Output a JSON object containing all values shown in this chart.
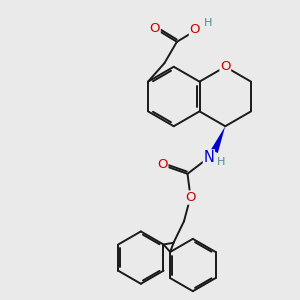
{
  "background_color": "#eaeaea",
  "figsize": [
    3.0,
    3.0
  ],
  "dpi": 100,
  "bond_color": "#1a1a1a",
  "bond_lw": 1.4,
  "atom_colors": {
    "O": "#cc0000",
    "N": "#0000cc",
    "H_teal": "#4a9090",
    "C": "#1a1a1a"
  },
  "font_size_atom": 9.5,
  "font_size_H": 8.0,
  "xlim": [
    0,
    10
  ],
  "ylim": [
    0,
    10
  ]
}
